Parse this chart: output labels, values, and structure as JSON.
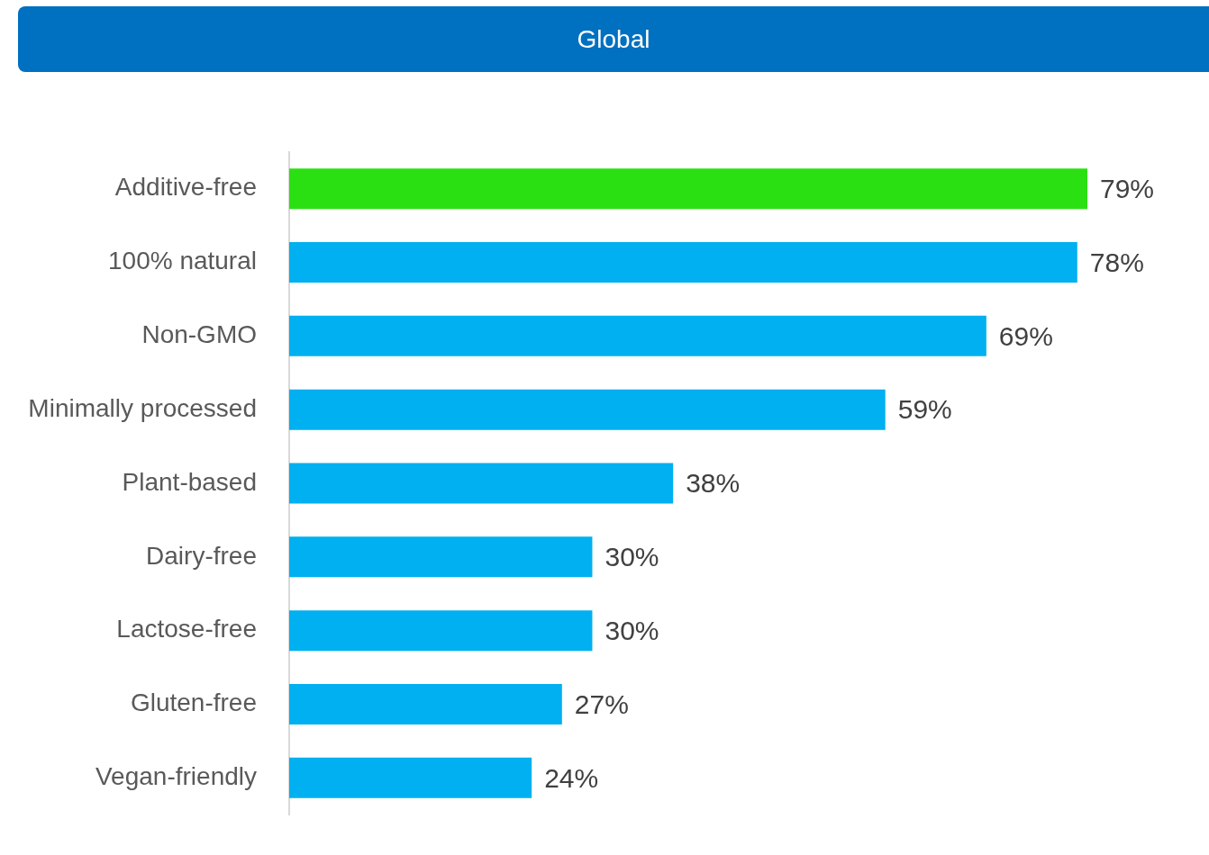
{
  "chart_data": {
    "type": "bar",
    "orientation": "horizontal",
    "title": "Global",
    "categories": [
      "Additive-free",
      "100% natural",
      "Non-GMO",
      "Minimally processed",
      "Plant-based",
      "Dairy-free",
      "Lactose-free",
      "Gluten-free",
      "Vegan-friendly"
    ],
    "values": [
      79,
      78,
      69,
      59,
      38,
      30,
      30,
      27,
      24
    ],
    "colors": [
      "#2ae012",
      "#00b0f0",
      "#00b0f0",
      "#00b0f0",
      "#00b0f0",
      "#00b0f0",
      "#00b0f0",
      "#00b0f0",
      "#00b0f0"
    ],
    "value_labels": [
      "79%",
      "78%",
      "69%",
      "59%",
      "38%",
      "30%",
      "30%",
      "27%",
      "24%"
    ],
    "tick_labels": "y",
    "legend": false
  }
}
